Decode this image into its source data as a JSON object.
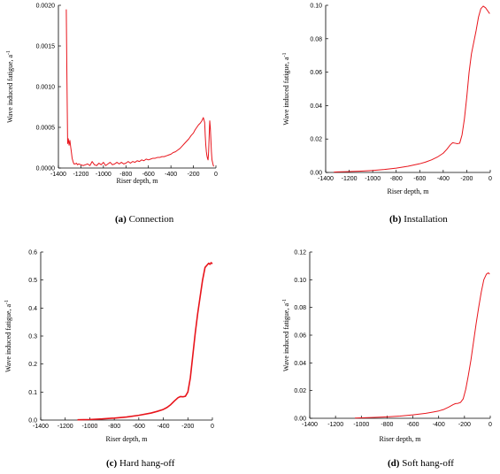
{
  "chart_data": [
    {
      "type": "line",
      "caption_tag": "(a)",
      "caption_text": "Connection",
      "xlabel": "Riser depth, m",
      "ylabel": "Wave induced fatigue, a",
      "ylabel_sup": "-1",
      "xlim": [
        -1400,
        0
      ],
      "ylim": [
        0,
        0.002
      ],
      "xticks": [
        "-1400",
        "-1200",
        "-1000",
        "-800",
        "-600",
        "-400",
        "-200",
        "0"
      ],
      "yticks": [
        "0.0000",
        "0.0005",
        "0.0010",
        "0.0015",
        "0.0020"
      ],
      "ytick_values": [
        0,
        0.0005,
        0.001,
        0.0015,
        0.002
      ],
      "color": "#e8141b",
      "series": [
        {
          "x": [
            -1330,
            -1325,
            -1318,
            -1312,
            -1305,
            -1298,
            -1290,
            -1285,
            -1278,
            -1270,
            -1262,
            -1250,
            -1240,
            -1230,
            -1220,
            -1200,
            -1180,
            -1160,
            -1140,
            -1120,
            -1100,
            -1080,
            -1060,
            -1040,
            -1020,
            -1000,
            -980,
            -960,
            -940,
            -920,
            -900,
            -880,
            -860,
            -840,
            -820,
            -800,
            -780,
            -760,
            -740,
            -720,
            -700,
            -680,
            -660,
            -640,
            -620,
            -600,
            -580,
            -560,
            -540,
            -520,
            -500,
            -480,
            -460,
            -440,
            -420,
            -400,
            -380,
            -360,
            -340,
            -320,
            -300,
            -280,
            -260,
            -240,
            -220,
            -200,
            -185,
            -170,
            -155,
            -140,
            -125,
            -112,
            -100,
            -95,
            -90,
            -85,
            -80,
            -75,
            -70,
            -65,
            -60,
            -55,
            -50,
            -45,
            -40,
            -35,
            -30,
            -25,
            -20
          ],
          "y": [
            0.00195,
            0.0012,
            0.0003,
            0.00036,
            0.00028,
            0.00034,
            0.00025,
            0.0002,
            0.00012,
            8e-05,
            5e-05,
            5e-05,
            6e-05,
            4e-05,
            5e-05,
            4e-05,
            3e-05,
            4e-05,
            5e-05,
            3e-05,
            8e-05,
            4e-05,
            3e-05,
            6e-05,
            4e-05,
            7e-05,
            3e-05,
            5e-05,
            7e-05,
            4e-05,
            5e-05,
            7e-05,
            5e-05,
            7e-05,
            5e-05,
            6e-05,
            8e-05,
            6e-05,
            8e-05,
            7e-05,
            9e-05,
            8e-05,
            0.0001,
            9e-05,
            0.00011,
            0.0001,
            0.00011,
            0.00012,
            0.00012,
            0.00013,
            0.00013,
            0.00014,
            0.00014,
            0.00015,
            0.00016,
            0.00017,
            0.00019,
            0.0002,
            0.00022,
            0.00024,
            0.00027,
            0.0003,
            0.00033,
            0.00036,
            0.0004,
            0.00043,
            0.00047,
            0.0005,
            0.00053,
            0.00055,
            0.00058,
            0.00062,
            0.00056,
            0.0004,
            0.00028,
            0.0002,
            0.00015,
            0.00012,
            0.0001,
            0.0002,
            0.0004,
            0.00058,
            0.0005,
            0.00035,
            0.0002,
            0.0001,
            7e-05,
            4e-05,
            2e-05
          ]
        }
      ]
    },
    {
      "type": "line",
      "caption_tag": "(b)",
      "caption_text": "Installation",
      "xlabel": "Riser depth, m",
      "ylabel": "Wave induced fatigue, a",
      "ylabel_sup": "-1",
      "xlim": [
        -1400,
        0
      ],
      "ylim": [
        0,
        0.1
      ],
      "xticks": [
        "-1400",
        "-1200",
        "-1000",
        "-800",
        "-600",
        "-400",
        "-200",
        "0"
      ],
      "yticks": [
        "0.00",
        "0.02",
        "0.04",
        "0.06",
        "0.08",
        "0.10"
      ],
      "ytick_values": [
        0,
        0.02,
        0.04,
        0.06,
        0.08,
        0.1
      ],
      "color": "#e8141b",
      "series": [
        {
          "x": [
            -1330,
            -1300,
            -1200,
            -1100,
            -1000,
            -900,
            -800,
            -700,
            -600,
            -550,
            -500,
            -450,
            -400,
            -370,
            -340,
            -320,
            -300,
            -280,
            -260,
            -240,
            -220,
            -200,
            -180,
            -160,
            -140,
            -120,
            -100,
            -80,
            -60,
            -40,
            -20,
            -5
          ],
          "y": [
            0.0002,
            0.0003,
            0.0005,
            0.0008,
            0.0012,
            0.0018,
            0.0026,
            0.0037,
            0.0052,
            0.0062,
            0.0075,
            0.0092,
            0.0115,
            0.0138,
            0.0165,
            0.0178,
            0.0175,
            0.0172,
            0.0175,
            0.0225,
            0.032,
            0.045,
            0.06,
            0.071,
            0.078,
            0.085,
            0.093,
            0.098,
            0.0995,
            0.0985,
            0.0965,
            0.095
          ]
        }
      ]
    },
    {
      "type": "line",
      "caption_tag": "(c)",
      "caption_text": "Hard hang-off",
      "xlabel": "Riser depth, m",
      "ylabel": "Wave induced fatigue, a",
      "ylabel_sup": "-1",
      "xlim": [
        -1400,
        0
      ],
      "ylim": [
        0,
        0.6
      ],
      "xticks": [
        "-1400",
        "-1200",
        "-1000",
        "-800",
        "-600",
        "-400",
        "-200",
        "0"
      ],
      "yticks": [
        "0.0",
        "0.1",
        "0.2",
        "0.3",
        "0.4",
        "0.5",
        "0.6"
      ],
      "ytick_values": [
        0,
        0.1,
        0.2,
        0.3,
        0.4,
        0.5,
        0.6
      ],
      "color": "#e8141b",
      "series": [
        {
          "x": [
            -1100,
            -1000,
            -900,
            -800,
            -700,
            -600,
            -500,
            -450,
            -400,
            -370,
            -340,
            -310,
            -280,
            -260,
            -240,
            -220,
            -200,
            -180,
            -160,
            -140,
            -120,
            -100,
            -80,
            -60,
            -40,
            -30,
            -20,
            -10,
            0
          ],
          "y": [
            0.001,
            0.002,
            0.004,
            0.007,
            0.011,
            0.017,
            0.025,
            0.031,
            0.038,
            0.045,
            0.055,
            0.068,
            0.08,
            0.084,
            0.083,
            0.085,
            0.1,
            0.15,
            0.23,
            0.31,
            0.38,
            0.44,
            0.5,
            0.545,
            0.555,
            0.56,
            0.556,
            0.562,
            0.558
          ]
        }
      ]
    },
    {
      "type": "line",
      "caption_tag": "(d)",
      "caption_text": "Soft hang-off",
      "xlabel": "Riser depth, m",
      "ylabel": "Wave induced fatigue, a",
      "ylabel_sup": "-1",
      "xlim": [
        -1400,
        0
      ],
      "ylim": [
        0,
        0.12
      ],
      "xticks": [
        "-1400",
        "-1200",
        "-1000",
        "-800",
        "-600",
        "-400",
        "-200",
        "0"
      ],
      "yticks": [
        "0.00",
        "0.02",
        "0.04",
        "0.06",
        "0.08",
        "0.10",
        "0.12"
      ],
      "ytick_values": [
        0,
        0.02,
        0.04,
        0.06,
        0.08,
        0.1,
        0.12
      ],
      "color": "#e8141b",
      "series": [
        {
          "x": [
            -1050,
            -1000,
            -900,
            -800,
            -700,
            -600,
            -500,
            -450,
            -400,
            -360,
            -320,
            -290,
            -270,
            -250,
            -230,
            -210,
            -190,
            -170,
            -150,
            -130,
            -110,
            -90,
            -70,
            -50,
            -30,
            -15,
            -5
          ],
          "y": [
            0.0002,
            0.0003,
            0.0006,
            0.001,
            0.0016,
            0.0025,
            0.0036,
            0.0044,
            0.0053,
            0.0064,
            0.0082,
            0.0098,
            0.0106,
            0.0108,
            0.0115,
            0.014,
            0.021,
            0.031,
            0.042,
            0.055,
            0.068,
            0.08,
            0.091,
            0.1,
            0.104,
            0.105,
            0.104
          ]
        }
      ]
    }
  ]
}
